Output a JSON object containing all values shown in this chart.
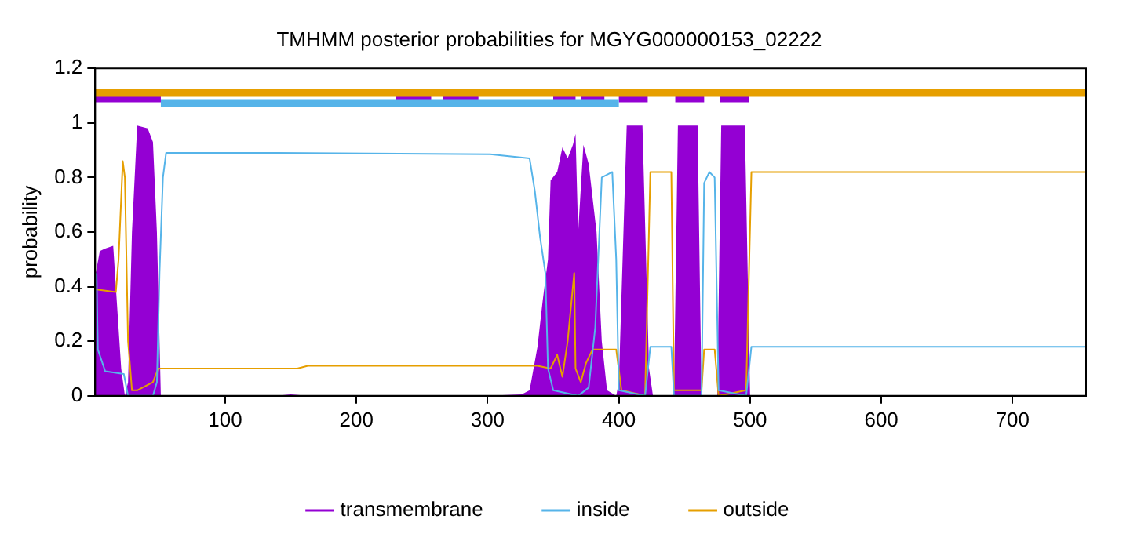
{
  "chart_data": {
    "type": "line",
    "title": "TMHMM posterior probabilities for MGYG000000153_02222",
    "ylabel": "probability",
    "xlim": [
      1,
      756
    ],
    "xticks": [
      100,
      200,
      300,
      400,
      500,
      600,
      700
    ],
    "ylim": [
      0,
      1.2
    ],
    "yticks": [
      0,
      0.2,
      0.4,
      0.6,
      0.8,
      1,
      1.2
    ],
    "grid": false,
    "legend": "bottom",
    "marker": "none",
    "series": [
      {
        "name": "transmembrane",
        "type": "area",
        "color": "#9400d3",
        "x": [
          1,
          4.5,
          8.6,
          14.7,
          16.7,
          20.8,
          23.6,
          26,
          29,
          33,
          41,
          45,
          48,
          51,
          139,
          150,
          163,
          300,
          326,
          332,
          338,
          342,
          346,
          348,
          353,
          357,
          361,
          365,
          367,
          369,
          373,
          377,
          383,
          387,
          391,
          398,
          400,
          406,
          418,
          423,
          426,
          442,
          445,
          460,
          463,
          475,
          478,
          496,
          500,
          756
        ],
        "values": [
          0.44,
          0.53,
          0.54,
          0.55,
          0.4,
          0.1,
          0,
          0.05,
          0.6,
          0.99,
          0.98,
          0.93,
          0.6,
          0,
          0,
          0.005,
          0,
          0,
          0.005,
          0.02,
          0.18,
          0.35,
          0.5,
          0.79,
          0.82,
          0.91,
          0.87,
          0.92,
          0.96,
          0.6,
          0.92,
          0.85,
          0.6,
          0.2,
          0.02,
          0,
          0.05,
          0.99,
          0.99,
          0.1,
          0,
          0,
          0.99,
          0.99,
          0,
          0,
          0.99,
          0.99,
          0,
          0
        ]
      },
      {
        "name": "inside",
        "color": "#56b4e9",
        "x": [
          2,
          3,
          8.6,
          22.8,
          26,
          45,
          48,
          50,
          52.6,
          55,
          139,
          302,
          332,
          336,
          340,
          344,
          346,
          350,
          369,
          377,
          382,
          387,
          395,
          398,
          400,
          420,
          424,
          440,
          442,
          463,
          465,
          469,
          473,
          476,
          497,
          501,
          756
        ],
        "values": [
          0.45,
          0.17,
          0.09,
          0.08,
          0,
          0,
          0.05,
          0.45,
          0.8,
          0.89,
          0.89,
          0.885,
          0.87,
          0.75,
          0.58,
          0.45,
          0.1,
          0.02,
          0,
          0.03,
          0.25,
          0.8,
          0.82,
          0.5,
          0.02,
          0,
          0.18,
          0.18,
          0,
          0,
          0.78,
          0.82,
          0.8,
          0.02,
          0,
          0.18,
          0.18
        ]
      },
      {
        "name": "outside",
        "color": "#e69f00",
        "x": [
          1,
          16.7,
          18.8,
          22,
          23.6,
          26,
          29,
          33,
          45,
          49,
          155,
          163,
          338,
          348,
          353,
          357,
          361,
          366,
          367,
          371,
          375,
          380,
          398,
          402,
          420,
          424,
          440,
          442,
          463,
          465,
          473,
          476,
          497,
          501,
          756
        ],
        "values": [
          0.39,
          0.38,
          0.5,
          0.86,
          0.8,
          0.2,
          0.02,
          0.02,
          0.05,
          0.1,
          0.1,
          0.11,
          0.11,
          0.1,
          0.15,
          0.07,
          0.2,
          0.45,
          0.1,
          0.05,
          0.12,
          0.17,
          0.17,
          0.02,
          0,
          0.82,
          0.82,
          0.02,
          0.02,
          0.17,
          0.17,
          0,
          0.02,
          0.82,
          0.82
        ]
      },
      {
        "color": "#e69f00",
        "x": [
          1,
          756
        ],
        "values": [
          1.11,
          1.11
        ]
      },
      {
        "color": "#56b4e9",
        "x": [
          51,
          400
        ],
        "values": [
          1.073,
          1.073
        ]
      },
      {
        "color": "#9400d3",
        "x": [
          1,
          51
        ],
        "values": [
          1.09,
          1.09
        ]
      },
      {
        "color": "#9400d3",
        "x": [
          230,
          257
        ],
        "values": [
          1.09,
          1.09
        ]
      },
      {
        "color": "#9400d3",
        "x": [
          266,
          293
        ],
        "values": [
          1.09,
          1.09
        ]
      },
      {
        "color": "#9400d3",
        "x": [
          350,
          367
        ],
        "values": [
          1.09,
          1.09
        ]
      },
      {
        "color": "#9400d3",
        "x": [
          371,
          389
        ],
        "values": [
          1.09,
          1.09
        ]
      },
      {
        "color": "#9400d3",
        "x": [
          400,
          422
        ],
        "values": [
          1.09,
          1.09
        ]
      },
      {
        "color": "#9400d3",
        "x": [
          443,
          465
        ],
        "values": [
          1.09,
          1.09
        ]
      },
      {
        "color": "#9400d3",
        "x": [
          477,
          499
        ],
        "values": [
          1.09,
          1.09
        ]
      }
    ]
  }
}
